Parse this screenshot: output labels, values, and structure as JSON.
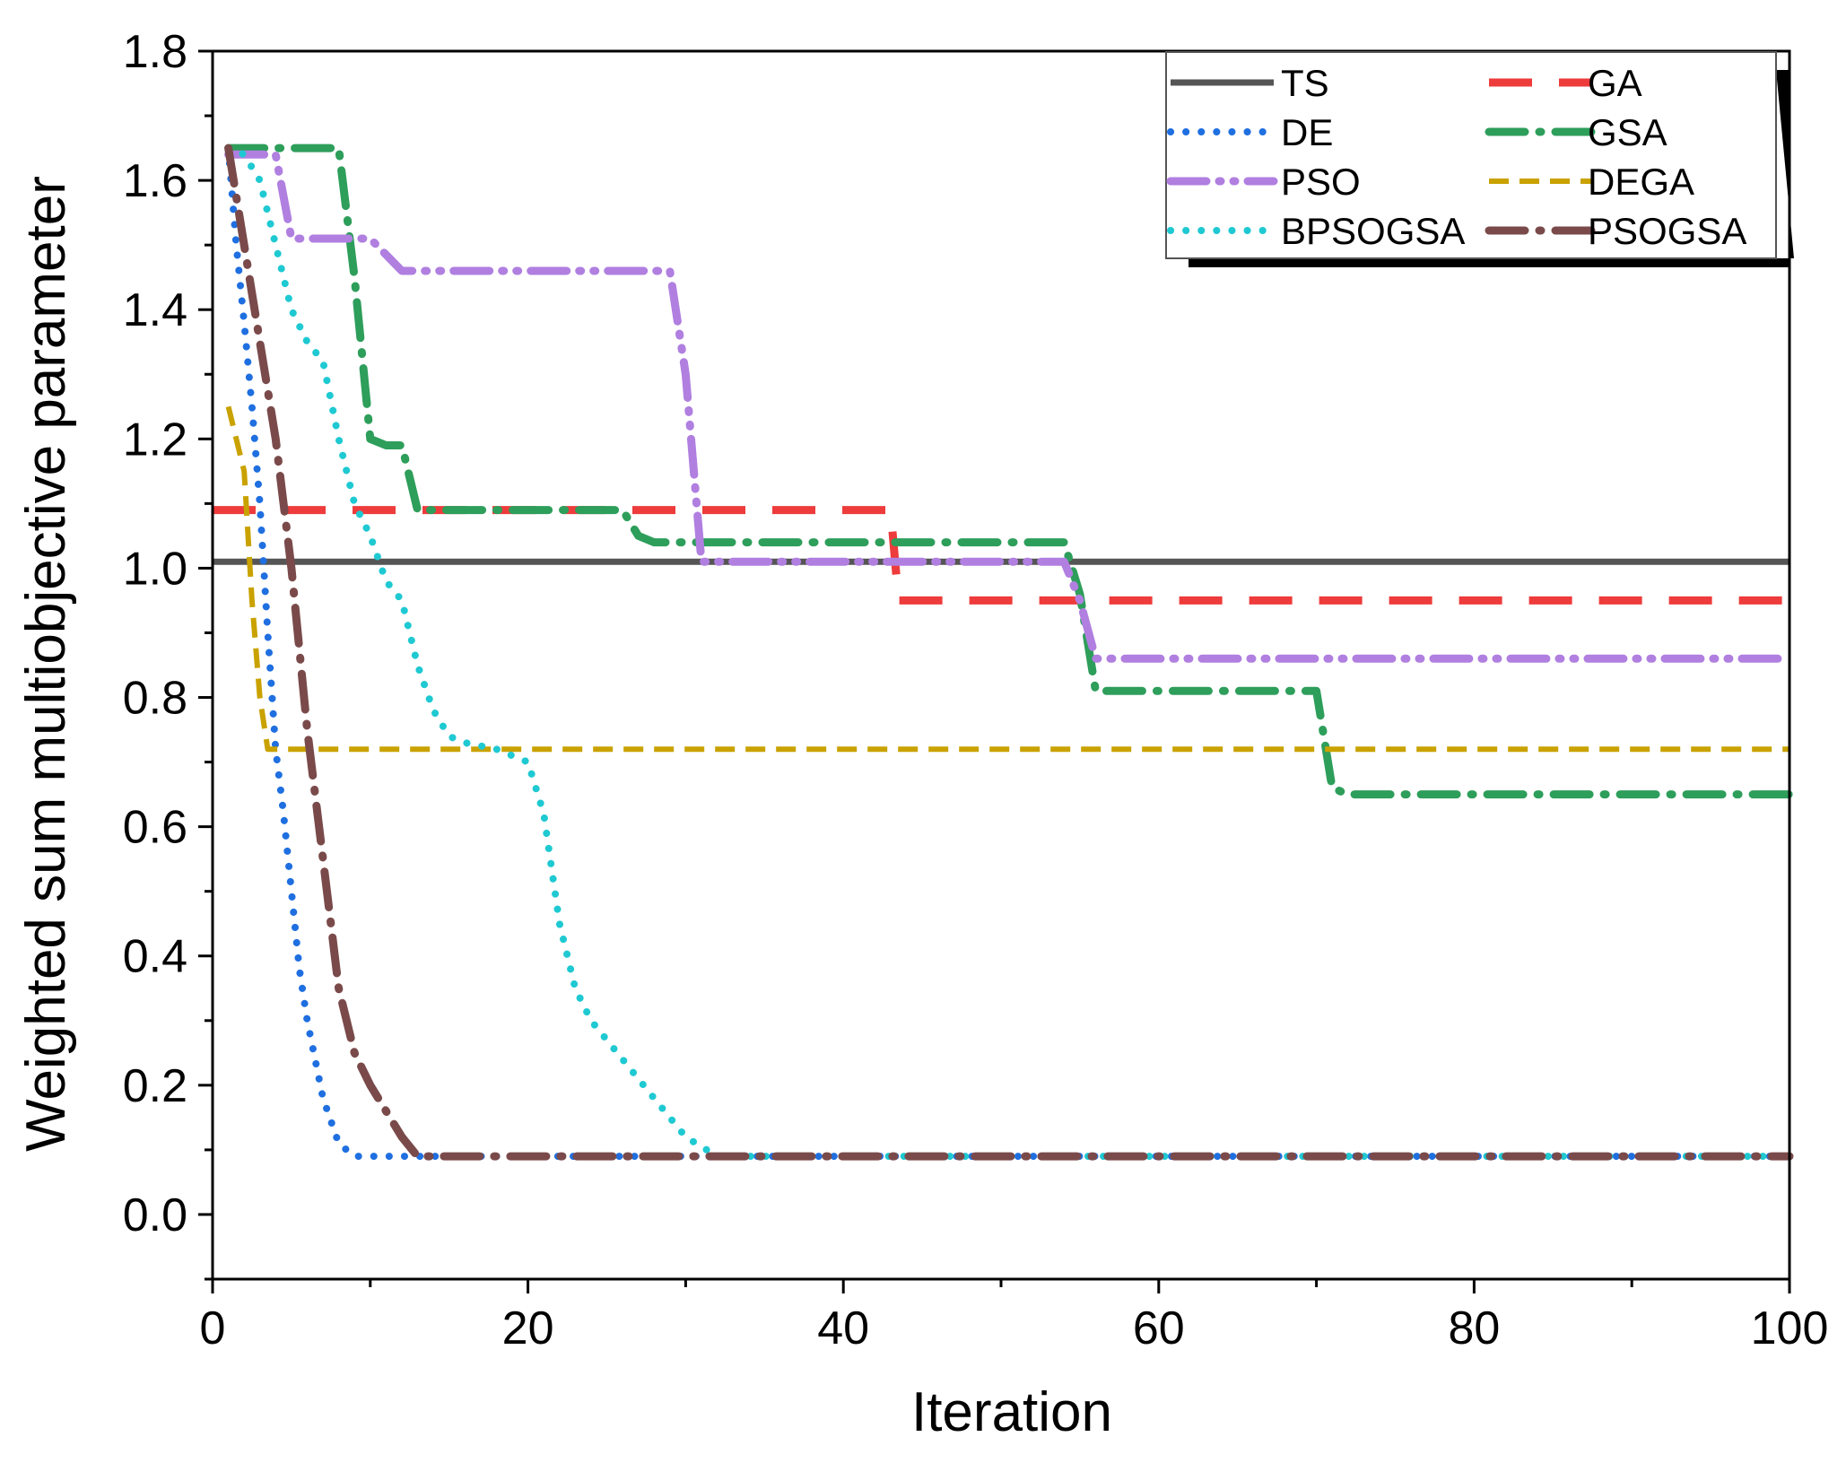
{
  "chart_data": {
    "type": "line",
    "title": "",
    "xlabel": "Iteration",
    "ylabel": "Weighted sum multiobjective parameter",
    "xlim": [
      0,
      100
    ],
    "ylim": [
      -0.1,
      1.8
    ],
    "xticks": [
      0,
      20,
      40,
      60,
      80,
      100
    ],
    "yticks": [
      0.0,
      0.2,
      0.4,
      0.6,
      0.8,
      1.0,
      1.2,
      1.4,
      1.6,
      1.8
    ],
    "xtick_labels": [
      "0",
      "20",
      "40",
      "60",
      "80",
      "100"
    ],
    "ytick_labels": [
      "0.0",
      "0.2",
      "0.4",
      "0.6",
      "0.8",
      "1.0",
      "1.2",
      "1.4",
      "1.6",
      "1.8"
    ],
    "grid": false,
    "legend_position": "top-right",
    "series": [
      {
        "name": "TS",
        "color": "#555555",
        "style": "solid",
        "x": [
          0,
          100
        ],
        "y": [
          1.01,
          1.01
        ]
      },
      {
        "name": "GA",
        "color": "#EE3B3B",
        "style": "dash-long",
        "x": [
          0,
          43,
          43.5,
          100
        ],
        "y": [
          1.09,
          1.09,
          0.95,
          0.95
        ]
      },
      {
        "name": "DE",
        "color": "#1F6FE0",
        "style": "dot",
        "x": [
          1,
          1.5,
          2,
          2.5,
          3,
          3.5,
          4,
          4.5,
          5,
          5.5,
          6,
          7,
          8,
          9,
          10,
          100
        ],
        "y": [
          1.65,
          1.5,
          1.38,
          1.25,
          1.1,
          0.9,
          0.72,
          0.62,
          0.5,
          0.38,
          0.3,
          0.18,
          0.11,
          0.09,
          0.09,
          0.09
        ]
      },
      {
        "name": "GSA",
        "color": "#2E9E5B",
        "style": "dash-dot",
        "x": [
          1,
          8,
          9,
          10,
          11,
          12,
          13,
          26,
          27,
          28,
          54,
          55,
          56,
          70,
          71,
          72,
          100
        ],
        "y": [
          1.65,
          1.65,
          1.45,
          1.2,
          1.19,
          1.19,
          1.09,
          1.09,
          1.05,
          1.04,
          1.04,
          0.96,
          0.81,
          0.81,
          0.66,
          0.65,
          0.65
        ]
      },
      {
        "name": "PSO",
        "color": "#B07FE0",
        "style": "dash-dot-dot",
        "x": [
          1,
          4,
          5,
          10,
          12,
          29,
          30,
          31,
          54,
          55,
          56,
          100
        ],
        "y": [
          1.64,
          1.64,
          1.51,
          1.51,
          1.46,
          1.46,
          1.3,
          1.01,
          1.01,
          0.95,
          0.86,
          0.86
        ]
      },
      {
        "name": "DEGA",
        "color": "#C9A200",
        "style": "dash-short",
        "x": [
          1,
          2,
          2.5,
          3,
          3.5,
          5,
          100
        ],
        "y": [
          1.25,
          1.15,
          0.95,
          0.8,
          0.72,
          0.72,
          0.72
        ]
      },
      {
        "name": "BPSOGSA",
        "color": "#1FC9D2",
        "style": "dot",
        "x": [
          1,
          2,
          3,
          4,
          5,
          6,
          7,
          8,
          9,
          10,
          11,
          12,
          13,
          14,
          15,
          16,
          18,
          20,
          21,
          22,
          23,
          24,
          26,
          28,
          30,
          32,
          33,
          100
        ],
        "y": [
          1.65,
          1.64,
          1.6,
          1.5,
          1.4,
          1.35,
          1.32,
          1.2,
          1.1,
          1.05,
          0.98,
          0.95,
          0.85,
          0.78,
          0.74,
          0.73,
          0.72,
          0.7,
          0.62,
          0.45,
          0.35,
          0.3,
          0.24,
          0.18,
          0.12,
          0.09,
          0.09,
          0.09
        ]
      },
      {
        "name": "PSOGSA",
        "color": "#7A4A4A",
        "style": "dash-dot",
        "x": [
          1,
          2,
          3,
          4,
          5,
          6,
          7,
          8,
          9,
          10,
          11,
          12,
          13,
          100
        ],
        "y": [
          1.65,
          1.5,
          1.35,
          1.2,
          1.0,
          0.75,
          0.55,
          0.35,
          0.25,
          0.2,
          0.16,
          0.12,
          0.09,
          0.09
        ]
      }
    ]
  }
}
